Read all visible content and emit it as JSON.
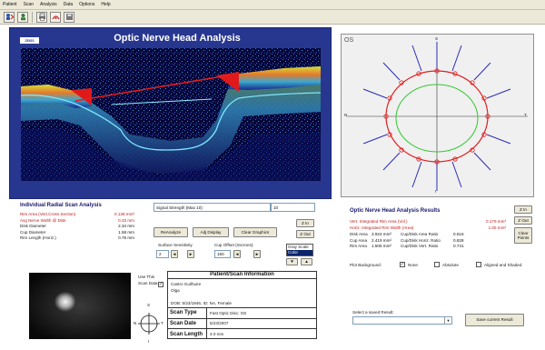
{
  "menu": [
    "Patient",
    "Scan",
    "Analysis",
    "Data",
    "Options",
    "Help"
  ],
  "scan": {
    "title": "Optic Nerve Head Analysis",
    "logo": "ZEISS"
  },
  "fundus_plot": {
    "eye": "OS",
    "top": "S",
    "bottom": "I",
    "left": "N",
    "right": "T"
  },
  "radial": {
    "title": "Individual Radial Scan Analysis",
    "rows": [
      {
        "label": "Rim Area (Vert.Cross Section)",
        "value": "0.136 mm²",
        "highlight": true
      },
      {
        "label": "Avg Nerve Width @ Disk",
        "value": "0.33 mm",
        "highlight": true
      },
      {
        "label": "Disk Diameter",
        "value": "2.34 mm",
        "highlight": false
      },
      {
        "label": "Cup Diameter",
        "value": "1.58 mm",
        "highlight": false
      },
      {
        "label": "Rim Length (Horiz.)",
        "value": "0.76 mm",
        "highlight": false
      }
    ]
  },
  "controls": {
    "signal_label": "Signal Strength (Max 10)",
    "signal_value": "10",
    "reanalyze": "ReAnalyze",
    "adj_display": "Adj Display",
    "clear_graphics": "Clear Graphics",
    "zin": "Z In",
    "zout": "Z Out",
    "surface_label": "Surface Sensitivity",
    "surface_value": "2",
    "cup_label": "Cup Offset (microns):",
    "cup_value": "150",
    "color_options": [
      "Gray Scale",
      "Color"
    ],
    "color_selected": "Color"
  },
  "results": {
    "title": "Optic Nerve Head Analysis Results",
    "left": [
      {
        "label": "Vert. Integrated Rim Area (Vol.)",
        "value": "0.179 mm³",
        "highlight": true
      },
      {
        "label": "Horiz. Integrated Rim Width (Area)",
        "value": "1.05 mm²",
        "highlight": true
      }
    ],
    "pairs": [
      {
        "l1": "Disk Area",
        "v1": "3.924 mm²",
        "l2": "Cup/Disk Area Ratio",
        "v2": "0.616"
      },
      {
        "l1": "Cup Area",
        "v1": "2.419 mm²",
        "l2": "Cup/Disk Horiz. Ratio",
        "v2": "0.828"
      },
      {
        "l1": "Rim Area",
        "v1": "1.505 mm²",
        "l2": "Cup/Disk Vert. Ratio",
        "v2": "0.741"
      }
    ],
    "zin": "Z In",
    "zout": "Z Out",
    "clear_points": "Clear Points",
    "plot_bg_label": "Plot Background:",
    "bg_options": [
      {
        "label": "None",
        "checked": true
      },
      {
        "label": "Absolute",
        "checked": false
      },
      {
        "label": "Aligned and Shaded",
        "checked": false
      }
    ]
  },
  "use_scan": {
    "label": "Use This Scan Data",
    "checked": true
  },
  "patient": {
    "header": "Patient/Scan Information",
    "name_last": "Castro Guilhuire",
    "name_first": "Olga",
    "dob_line": "DOB: 5/23/1946, ID: NA, Female",
    "scan_type_label": "Scan Type",
    "scan_type": "Fast Optic Disc: OS",
    "scan_date_label": "Scan Date",
    "scan_date": "5/23/2007",
    "scan_length_label": "Scan Length",
    "scan_length": "4.0 mm"
  },
  "compass": {
    "s": "S",
    "i": "I",
    "n": "N",
    "t": "T"
  },
  "saved": {
    "label": "Select a saved Result:",
    "save_button": "Save current Result"
  }
}
